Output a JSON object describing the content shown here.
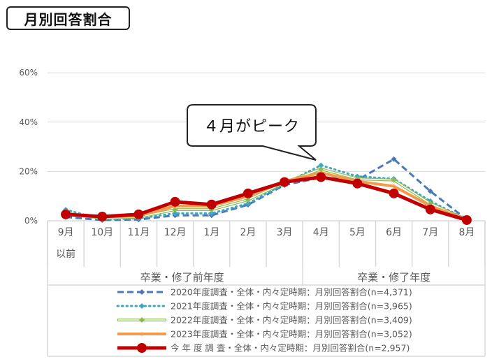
{
  "title": "月別回答割合",
  "callout": "４月がピーク",
  "chart_data": {
    "type": "line",
    "title": "月別回答割合",
    "annotation": "４月がピーク",
    "xlabel": "",
    "ylabel": "",
    "ylim": [
      0,
      60
    ],
    "yticks": [
      "0%",
      "20%",
      "40%",
      "60%"
    ],
    "grid": true,
    "legend_position": "bottom",
    "categories": [
      "9月以前",
      "10月",
      "11月",
      "12月",
      "1月",
      "2月",
      "3月",
      "4月",
      "5月",
      "6月",
      "7月",
      "8月"
    ],
    "category_labels": [
      {
        "line1": "9月",
        "line2": "以前"
      },
      {
        "line1": "10月",
        "line2": ""
      },
      {
        "line1": "11月",
        "line2": ""
      },
      {
        "line1": "12月",
        "line2": ""
      },
      {
        "line1": "1月",
        "line2": ""
      },
      {
        "line1": "2月",
        "line2": ""
      },
      {
        "line1": "3月",
        "line2": ""
      },
      {
        "line1": "4月",
        "line2": ""
      },
      {
        "line1": "5月",
        "line2": ""
      },
      {
        "line1": "6月",
        "line2": ""
      },
      {
        "line1": "7月",
        "line2": ""
      },
      {
        "line1": "8月",
        "line2": ""
      }
    ],
    "groups": [
      {
        "label": "卒業・修了前年度",
        "span": [
          0,
          6
        ]
      },
      {
        "label": "卒業・修了年度",
        "span": [
          7,
          11
        ]
      }
    ],
    "series": [
      {
        "name": "2020年度調査・全体・内々定時期：月別回答割合(n=4,371)",
        "color": "#4a78b8",
        "style": "dashed",
        "values": [
          1.5,
          0.3,
          0.5,
          2.2,
          2.2,
          6.5,
          14.5,
          17.5,
          16.5,
          25.0,
          12.0,
          0.5
        ]
      },
      {
        "name": "2021年度調査・全体・内々定時期：月別回答割合(n=3,965)",
        "color": "#3fa6c4",
        "style": "dotted",
        "values": [
          4.5,
          0.5,
          1.0,
          3.0,
          3.0,
          7.0,
          15.0,
          22.5,
          18.0,
          17.0,
          8.0,
          0.5
        ]
      },
      {
        "name": "2022年度調査・全体・内々定時期：月別回答割合(n=3,409)",
        "color": "#8dbb4f",
        "style": "double",
        "values": [
          3.0,
          1.0,
          1.5,
          4.5,
          4.5,
          8.5,
          15.5,
          21.0,
          17.0,
          16.5,
          7.0,
          0.5
        ]
      },
      {
        "name": "2023年度調査・全体・内々定時期：月別回答割合(n=3,052)",
        "color": "#f39a4c",
        "style": "solid",
        "values": [
          3.0,
          1.5,
          2.0,
          6.0,
          6.0,
          10.0,
          16.0,
          19.5,
          16.0,
          14.0,
          6.0,
          0.5
        ]
      },
      {
        "name": "今 年 度 調 査・全体・内々定時期：月別回答割合(n=2,957)",
        "color": "#c00000",
        "style": "solid-thick",
        "values": [
          2.6,
          1.7,
          2.6,
          7.7,
          6.6,
          11.1,
          15.7,
          17.7,
          15.1,
          11.1,
          4.6,
          0.3
        ]
      }
    ]
  }
}
